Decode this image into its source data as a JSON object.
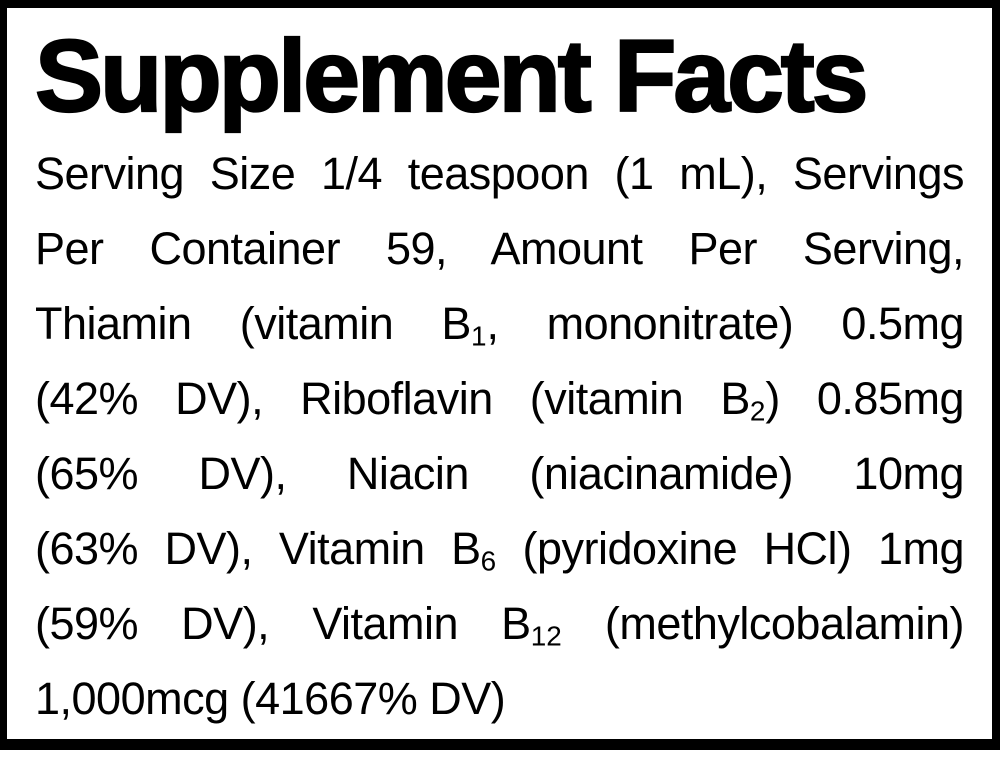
{
  "label": {
    "title": "Supplement Facts",
    "border_color": "#000000",
    "background_color": "#ffffff",
    "text_color": "#000000",
    "lines": [
      {
        "pre": "Serving Size 1/4 teaspoon (1 mL), Servings"
      },
      {
        "pre": "Per Container 59, Amount Per Serving,"
      },
      {
        "pre": "Thiamin (vitamin B",
        "sub": "1",
        "post": ", mononitrate) 0.5mg"
      },
      {
        "pre": "(42% DV), Riboflavin (vitamin B",
        "sub": "2",
        "post": ") 0.85mg"
      },
      {
        "pre": "(65% DV), Niacin (niacinamide) 10mg"
      },
      {
        "pre": "(63% DV), Vitamin B",
        "sub": "6",
        "post": " (pyridoxine HCl) 1mg"
      },
      {
        "pre": "(59% DV), Vitamin B",
        "sub": "12",
        "post": " (methylcobalamin)"
      },
      {
        "pre": "1,000mcg (41667% DV)"
      }
    ],
    "facts": {
      "serving_size": "1/4 teaspoon (1 mL)",
      "servings_per_container": "59",
      "nutrients": [
        {
          "name": "Thiamin (vitamin B1, mononitrate)",
          "amount": "0.5mg",
          "daily_value": "42% DV"
        },
        {
          "name": "Riboflavin (vitamin B2)",
          "amount": "0.85mg",
          "daily_value": "65% DV"
        },
        {
          "name": "Niacin (niacinamide)",
          "amount": "10mg",
          "daily_value": "63% DV"
        },
        {
          "name": "Vitamin B6 (pyridoxine HCl)",
          "amount": "1mg",
          "daily_value": "59% DV"
        },
        {
          "name": "Vitamin B12 (methylcobalamin)",
          "amount": "1,000mcg",
          "daily_value": "41667% DV"
        }
      ]
    }
  }
}
